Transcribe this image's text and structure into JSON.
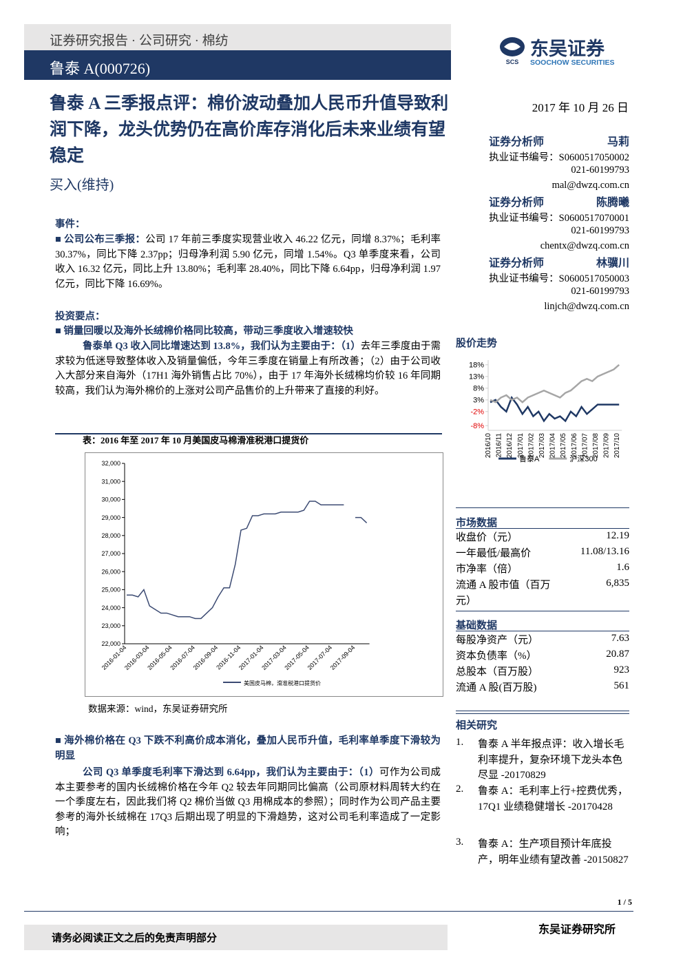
{
  "header": {
    "category": "证券研究报告 · 公司研究 ·  棉纺",
    "company": "鲁泰 A(000726)",
    "logo_cn": "东吴证券",
    "logo_abbr": "SCS",
    "logo_en": "SOOCHOW SECURITIES"
  },
  "title": "鲁泰 A 三季报点评：棉价波动叠加人民币升值导致利润下降，龙头优势仍在高价库存消化后未来业绩有望稳定",
  "rating": "买入(维持)",
  "date": "2017 年 10 月 26 日",
  "analysts": [
    {
      "role": "证券分析师",
      "name": "马莉",
      "license": "执业证书编号：S0600517050002",
      "phone": "021-60199793",
      "email": "mal@dwzq.com.cn"
    },
    {
      "role": "证券分析师",
      "name": "陈腾曦",
      "license": "执业证书编号：S0600517070001",
      "phone": "021-60199793",
      "email": "chentx@dwzq.com.cn"
    },
    {
      "role": "证券分析师",
      "name": "林骥川",
      "license": "执业证书编号：S0600517050003",
      "phone": "021-60199793",
      "email": "linjch@dwzq.com.cn"
    }
  ],
  "event": {
    "heading": "事件：",
    "lead": "■ 公司公布三季报：",
    "text": "公司 17 年前三季度实现营业收入 46.22 亿元，同增 8.37%；毛利率 30.37%，同比下降 2.37pp；归母净利润 5.90 亿元，同增 1.54%。Q3 单季度来看，公司收入 16.32 亿元，同比上升 13.80%；毛利率 28.40%，同比下降 6.64pp，归母净利润 1.97 亿元，同比下降 16.69%。"
  },
  "invest": {
    "heading": "投资要点：",
    "point1": {
      "title": "■ 销量回暖以及海外长绒棉价格同比较高，带动三季度收入增速较快",
      "lead": "鲁泰单 Q3 收入同比增速达到 13.8%，我们认为主要由于：（1）",
      "text": "去年三季度由于需求较为低迷导致整体收入及销量偏低，今年三季度在销量上有所改善；（2）由于公司收入大部分来自海外（17H1 海外销售占比 70%），由于 17 年海外长绒棉均价较 16 年同期较高，我们认为海外棉价的上涨对公司产品售价的上升带来了直接的利好。"
    },
    "point2": {
      "title": "■ 海外棉价格在 Q3 下跌不利高价成本消化，叠加人民币升值，毛利率单季度下滑较为明显",
      "lead": "公司 Q3 单季度毛利率下滑达到 6.64pp，我们认为主要由于：（1）",
      "text": "可作为公司成本主要参考的国内长绒棉价格在今年 Q2 较去年同期同比偏高（公司原材料周转大约在一个季度左右，因此我们将 Q2 棉价当做 Q3 用棉成本的参照）；同时作为公司产品主要参考的海外长绒棉在 17Q3 后期出现了明显的下滑趋势，这对公司毛利率造成了一定影响；"
    }
  },
  "figure": {
    "caption": "表：2016 年至 2017 年 10 月美国皮马棉滑准税港口提货价",
    "source": "数据来源：wind，东吴证券研究所"
  },
  "stock_heading": "股价走势",
  "market_data": {
    "heading": "市场数据",
    "rows": [
      [
        "收盘价（元）",
        12.19
      ],
      [
        "一年最低/最高价",
        "11.08/13.16"
      ],
      [
        "市净率（倍）",
        1.6
      ],
      [
        "流通 A 股市值（百万元）",
        "6,835"
      ]
    ]
  },
  "basic_data": {
    "heading": "基础数据",
    "rows": [
      [
        "每股净资产（元）",
        7.63
      ],
      [
        "资本负债率（%）",
        20.87
      ],
      [
        "总股本（百万股）",
        923
      ],
      [
        "流通 A 股(百万股)",
        561
      ]
    ]
  },
  "related": {
    "heading": "相关研究",
    "items": [
      {
        "number": "1.",
        "text": "鲁泰 A 半年报点评：收入增长毛利率提升，复杂环境下龙头本色尽显 -20170829"
      },
      {
        "number": "2.",
        "text": "鲁泰 A：毛利率上行+控费优秀，17Q1 业绩稳健增长 -20170428"
      },
      {
        "number": "3.",
        "text": "鲁泰 A：生产项目预计年底投产，明年业绩有望改善 -20150827"
      }
    ]
  },
  "page": "1 / 5",
  "footer_left": "请务必阅读正文之后的免责声明部分",
  "footer_right": "东吴证券研究所",
  "chart_data": [
    {
      "type": "line",
      "categories": [
        "2016-01-04",
        null,
        null,
        null,
        "2016-03-04",
        null,
        null,
        null,
        "2016-05-04",
        null,
        null,
        null,
        "2016-07-04",
        null,
        null,
        null,
        "2016-09-04",
        null,
        null,
        null,
        "2016-11-04",
        null,
        null,
        null,
        "2017-01-04",
        null,
        null,
        null,
        "2017-03-04",
        null,
        null,
        null,
        "2017-05-04",
        null,
        null,
        null,
        "2017-07-04",
        null,
        null,
        null,
        "2017-09-04",
        null,
        null
      ],
      "series": [
        {
          "name": "美国皮马棉，滑准税港口提货价",
          "color": "#3b4a72",
          "values": [
            24700,
            24700,
            24600,
            25000,
            24100,
            23900,
            23700,
            23700,
            23600,
            23500,
            23500,
            23500,
            23400,
            23400,
            23700,
            24000,
            24600,
            25100,
            25100,
            26400,
            28300,
            28400,
            29100,
            29100,
            29200,
            29200,
            29200,
            29300,
            29300,
            29300,
            29300,
            29400,
            29900,
            29900,
            29700,
            29700,
            29700,
            29700,
            29700,
            null,
            29000,
            29000,
            28700
          ]
        }
      ],
      "ylim": [
        22000,
        32000
      ],
      "yticks": [
        {
          "value": 22000,
          "label": "22,000"
        },
        {
          "value": 23000,
          "label": "23,000"
        },
        {
          "value": 24000,
          "label": "24,000"
        },
        {
          "value": 25000,
          "label": "25,000"
        },
        {
          "value": 26000,
          "label": "26,000"
        },
        {
          "value": 27000,
          "label": "27,000"
        },
        {
          "value": 28000,
          "label": "28,000"
        },
        {
          "value": 29000,
          "label": "29,000"
        },
        {
          "value": 30000,
          "label": "30,000"
        },
        {
          "value": 31000,
          "label": "31,000"
        },
        {
          "value": 32000,
          "label": "32,000"
        }
      ],
      "grid": false
    },
    {
      "type": "line",
      "categories": [
        "2016/10",
        null,
        "2016/11",
        null,
        "2016/12",
        null,
        "2017/01",
        null,
        "2017/02",
        null,
        "2017/03",
        null,
        "2017/04",
        null,
        "2017/05",
        null,
        "2017/06",
        null,
        "2017/07",
        null,
        "2017/08",
        null,
        "2017/09",
        null,
        "2017/10"
      ],
      "series": [
        {
          "name": "鲁泰A",
          "color": "#1f3864",
          "values": [
            2,
            3,
            0,
            -2,
            4,
            1,
            -3,
            0,
            -4,
            -2,
            -6,
            -3,
            -5,
            -4,
            -6,
            -2,
            -4,
            0,
            -3,
            -1,
            1,
            1,
            1,
            1,
            1
          ]
        },
        {
          "name": "沪深300",
          "color": "#a6a6a6",
          "values": [
            3,
            2,
            4,
            5,
            3,
            4,
            2,
            4,
            5,
            6,
            7,
            6,
            5,
            4,
            6,
            7,
            9,
            11,
            12,
            11,
            13,
            14,
            15,
            16,
            18
          ]
        }
      ],
      "ylim": [
        -10,
        20
      ],
      "yticks": [
        {
          "value": 18,
          "label": "18%"
        },
        {
          "value": 13,
          "label": "13%"
        },
        {
          "value": 8,
          "label": "8%"
        },
        {
          "value": 3,
          "label": "3%"
        },
        {
          "value": -2,
          "label": "-2%"
        },
        {
          "value": -8,
          "label": "-8%"
        }
      ],
      "grid": false
    }
  ]
}
